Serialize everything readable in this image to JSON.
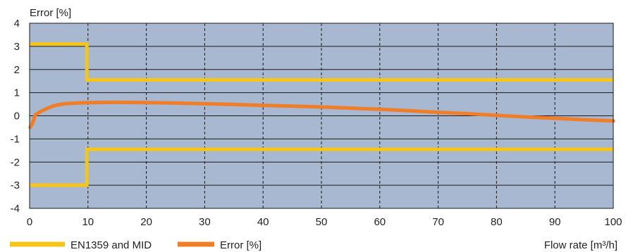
{
  "chart_data": {
    "type": "line",
    "ylabel": "Error [%]",
    "xlabel": "Flow rate [m³/h]",
    "xlim": [
      0,
      100
    ],
    "ylim": [
      -4,
      4
    ],
    "x_ticks": [
      0,
      10,
      20,
      30,
      40,
      50,
      60,
      70,
      80,
      90,
      100
    ],
    "y_ticks": [
      -4,
      -3,
      -2,
      -1,
      0,
      1,
      2,
      3,
      4
    ],
    "x_grid": "dashed vertical lines",
    "y_grid": "solid horizontal lines",
    "legend_position": "bottom-left",
    "series": [
      {
        "name": "EN1359 and MID",
        "color": "#f5c518",
        "segments": [
          [
            [
              0,
              3.1
            ],
            [
              9.8,
              3.1
            ],
            [
              9.8,
              1.55
            ],
            [
              100,
              1.55
            ]
          ],
          [
            [
              0,
              -3.0
            ],
            [
              9.8,
              -3.0
            ],
            [
              9.8,
              -1.45
            ],
            [
              100,
              -1.45
            ]
          ]
        ]
      },
      {
        "name": "Error [%]",
        "color": "#f07d28",
        "points": [
          [
            0.1,
            -0.5
          ],
          [
            0.5,
            -0.3
          ],
          [
            1,
            0.05
          ],
          [
            2,
            0.2
          ],
          [
            3,
            0.32
          ],
          [
            4,
            0.42
          ],
          [
            5,
            0.48
          ],
          [
            6,
            0.52
          ],
          [
            8,
            0.55
          ],
          [
            10,
            0.57
          ],
          [
            15,
            0.58
          ],
          [
            20,
            0.57
          ],
          [
            25,
            0.55
          ],
          [
            30,
            0.52
          ],
          [
            35,
            0.49
          ],
          [
            40,
            0.45
          ],
          [
            45,
            0.42
          ],
          [
            50,
            0.38
          ],
          [
            55,
            0.33
          ],
          [
            60,
            0.28
          ],
          [
            65,
            0.22
          ],
          [
            70,
            0.15
          ],
          [
            75,
            0.09
          ],
          [
            80,
            0.02
          ],
          [
            85,
            -0.05
          ],
          [
            90,
            -0.11
          ],
          [
            95,
            -0.17
          ],
          [
            100,
            -0.22
          ]
        ]
      }
    ],
    "colors": {
      "plot_background": "#a8b8d0",
      "grid": "#1a1a1a"
    }
  }
}
